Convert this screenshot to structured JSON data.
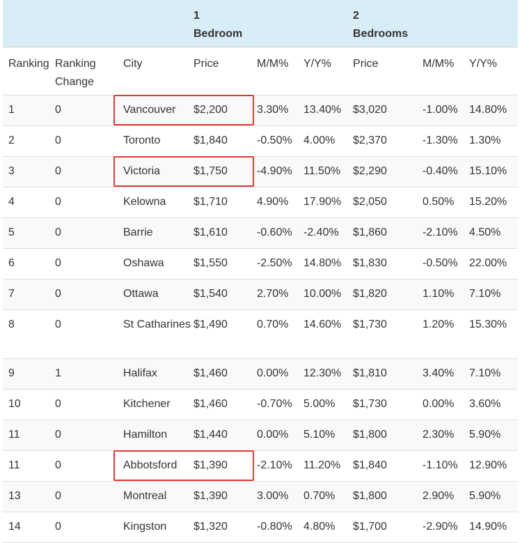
{
  "group_headers": {
    "one_bedroom": [
      "1",
      "Bedroom"
    ],
    "two_bedrooms": [
      "2",
      "Bedrooms"
    ]
  },
  "columns": [
    "Ranking",
    "Ranking Change",
    "City",
    "Price",
    "M/M%",
    "Y/Y%",
    "Price",
    "M/M%",
    "Y/Y%"
  ],
  "rows": [
    {
      "rank": "1",
      "change": "0",
      "city": "Vancouver",
      "p1": "$2,200",
      "mm1": "3.30%",
      "yy1": "13.40%",
      "p2": "$3,020",
      "mm2": "-1.00%",
      "yy2": "14.80%",
      "highlight": true
    },
    {
      "rank": "2",
      "change": "0",
      "city": "Toronto",
      "p1": "$1,840",
      "mm1": "-0.50%",
      "yy1": "4.00%",
      "p2": "$2,370",
      "mm2": "-1.30%",
      "yy2": "1.30%"
    },
    {
      "rank": "3",
      "change": "0",
      "city": "Victoria",
      "p1": "$1,750",
      "mm1": "-4.90%",
      "yy1": "11.50%",
      "p2": "$2,290",
      "mm2": "-0.40%",
      "yy2": "15.10%",
      "highlight": true
    },
    {
      "rank": "4",
      "change": "0",
      "city": "Kelowna",
      "p1": "$1,710",
      "mm1": "4.90%",
      "yy1": "17.90%",
      "p2": "$2,050",
      "mm2": "0.50%",
      "yy2": "15.20%"
    },
    {
      "rank": "5",
      "change": "0",
      "city": "Barrie",
      "p1": "$1,610",
      "mm1": "-0.60%",
      "yy1": "-2.40%",
      "p2": "$1,860",
      "mm2": "-2.10%",
      "yy2": "4.50%"
    },
    {
      "rank": "6",
      "change": "0",
      "city": "Oshawa",
      "p1": "$1,550",
      "mm1": "-2.50%",
      "yy1": "14.80%",
      "p2": "$1,830",
      "mm2": "-0.50%",
      "yy2": "22.00%"
    },
    {
      "rank": "7",
      "change": "0",
      "city": "Ottawa",
      "p1": "$1,540",
      "mm1": "2.70%",
      "yy1": "10.00%",
      "p2": "$1,820",
      "mm2": "1.10%",
      "yy2": "7.10%"
    },
    {
      "rank": "8",
      "change": "0",
      "city": "St Catharines",
      "p1": "$1,490",
      "mm1": "0.70%",
      "yy1": "14.60%",
      "p2": "$1,730",
      "mm2": "1.20%",
      "yy2": "15.30%"
    },
    {
      "rank": "9",
      "change": "1",
      "city": "Halifax",
      "p1": "$1,460",
      "mm1": "0.00%",
      "yy1": "12.30%",
      "p2": "$1,810",
      "mm2": "3.40%",
      "yy2": "7.10%"
    },
    {
      "rank": "10",
      "change": "0",
      "city": "Kitchener",
      "p1": "$1,460",
      "mm1": "-0.70%",
      "yy1": "5.00%",
      "p2": "$1,730",
      "mm2": "0.00%",
      "yy2": "3.60%"
    },
    {
      "rank": "11",
      "change": "0",
      "city": "Hamilton",
      "p1": "$1,440",
      "mm1": "0.00%",
      "yy1": "5.10%",
      "p2": "$1,800",
      "mm2": "2.30%",
      "yy2": "5.90%"
    },
    {
      "rank": "11",
      "change": "0",
      "city": "Abbotsford",
      "p1": "$1,390",
      "mm1": "-2.10%",
      "yy1": "11.20%",
      "p2": "$1,840",
      "mm2": "-1.10%",
      "yy2": "12.90%",
      "highlight": true
    },
    {
      "rank": "13",
      "change": "0",
      "city": "Montreal",
      "p1": "$1,390",
      "mm1": "3.00%",
      "yy1": "0.70%",
      "p2": "$1,800",
      "mm2": "2.90%",
      "yy2": "5.90%"
    },
    {
      "rank": "14",
      "change": "0",
      "city": "Kingston",
      "p1": "$1,320",
      "mm1": "-0.80%",
      "yy1": "4.80%",
      "p2": "$1,700",
      "mm2": "-2.90%",
      "yy2": "14.90%"
    }
  ],
  "colors": {
    "header_bg": "#d9edf7",
    "stripe_bg": "#f9f9f9",
    "highlight_border": "#e53935",
    "text": "#333333"
  }
}
